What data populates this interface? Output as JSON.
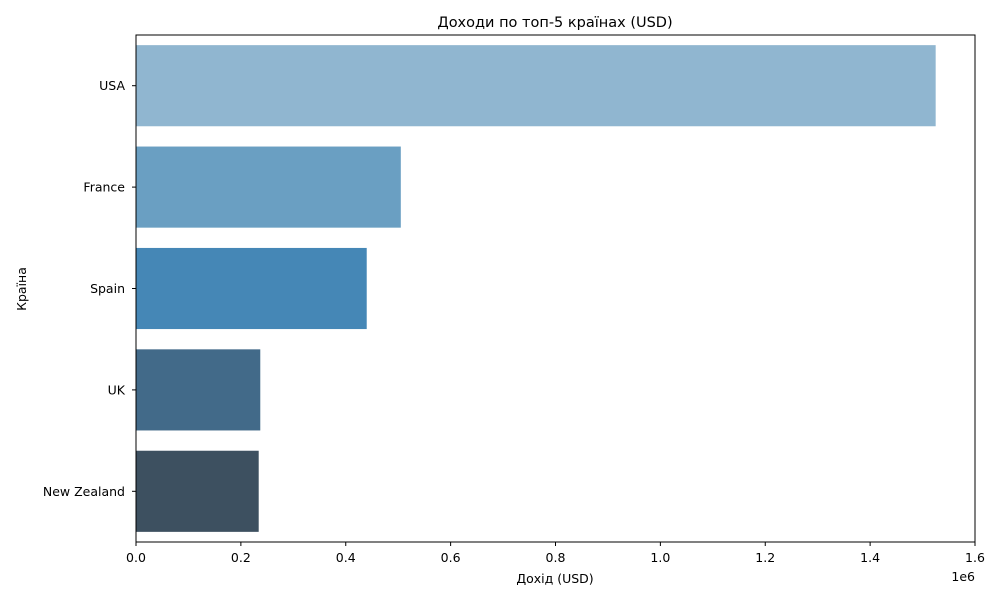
{
  "chart_data": {
    "type": "bar",
    "orientation": "horizontal",
    "title": "Доходи по топ-5 країнах (USD)",
    "xlabel": "Дохід (USD)",
    "ylabel": "Країна",
    "x_offset_label": "1e6",
    "xlim": [
      0,
      1600000
    ],
    "x_ticks": [
      0,
      200000,
      400000,
      600000,
      800000,
      1000000,
      1200000,
      1400000,
      1600000
    ],
    "x_tick_labels": [
      "0.0",
      "0.2",
      "0.4",
      "0.6",
      "0.8",
      "1.0",
      "1.2",
      "1.4",
      "1.6"
    ],
    "categories": [
      "USA",
      "France",
      "Spain",
      "UK",
      "New Zealand"
    ],
    "values": [
      1525000,
      505000,
      440000,
      237000,
      234000
    ],
    "colors": [
      "#90b6d0",
      "#6a9fc2",
      "#4587b6",
      "#426a89",
      "#3d5060"
    ],
    "grid": false,
    "legend": "none"
  }
}
